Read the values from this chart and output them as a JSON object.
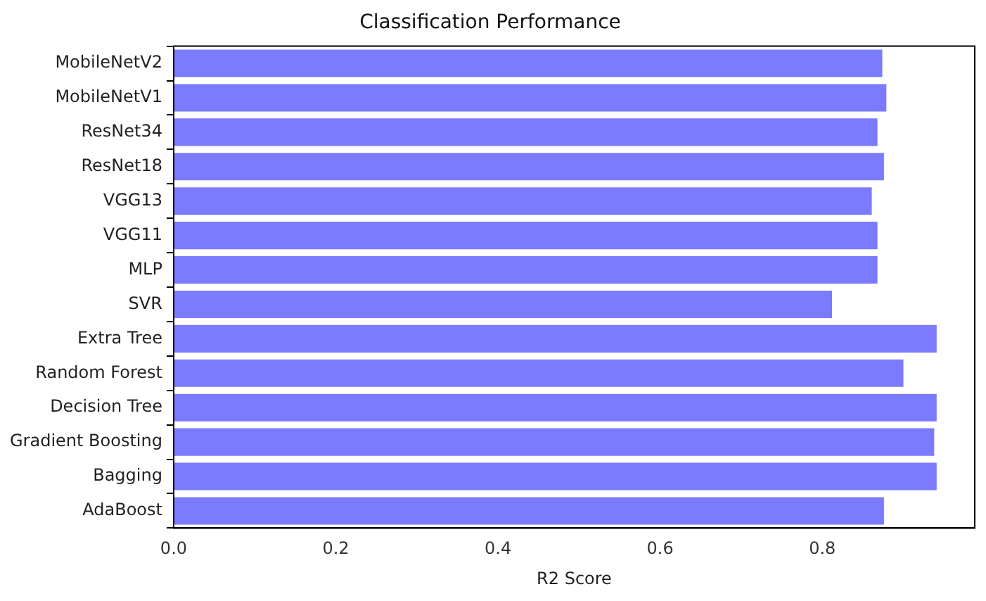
{
  "chart_data": {
    "type": "bar",
    "orientation": "horizontal",
    "title": "Classification Performance",
    "xlabel": "R2 Score",
    "categories": [
      "MobileNetV2",
      "MobileNetV1",
      "ResNet34",
      "ResNet18",
      "VGG13",
      "VGG11",
      "MLP",
      "SVR",
      "Extra Tree",
      "Random Forest",
      "Decision Tree",
      "Gradient Boosting",
      "Bagging",
      "AdaBoost"
    ],
    "values": [
      0.874,
      0.879,
      0.868,
      0.876,
      0.861,
      0.868,
      0.868,
      0.812,
      0.941,
      0.9,
      0.941,
      0.938,
      0.941,
      0.876
    ],
    "color": "#7b7bff",
    "xlim": [
      0,
      0.988
    ],
    "xticks": [
      {
        "value": 0,
        "label": "0.0"
      },
      0.2,
      0.4,
      0.6,
      0.8
    ],
    "grid": false,
    "legend": false
  }
}
